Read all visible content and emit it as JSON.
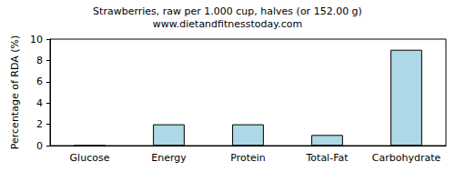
{
  "chart_data": {
    "type": "bar",
    "title": "Strawberries, raw per 1.000 cup, halves (or 152.00 g)",
    "subtitle": "www.dietandfitnesstoday.com",
    "ylabel": "Percentage of RDA (%)",
    "categories": [
      "Glucose",
      "Energy",
      "Protein",
      "Total-Fat",
      "Carbohydrate"
    ],
    "values": [
      0,
      2,
      2,
      1,
      9
    ],
    "color": "#add8e6",
    "ylim": [
      0,
      10
    ],
    "yticks": [
      0,
      2,
      4,
      6,
      8,
      10
    ],
    "grid": false
  }
}
